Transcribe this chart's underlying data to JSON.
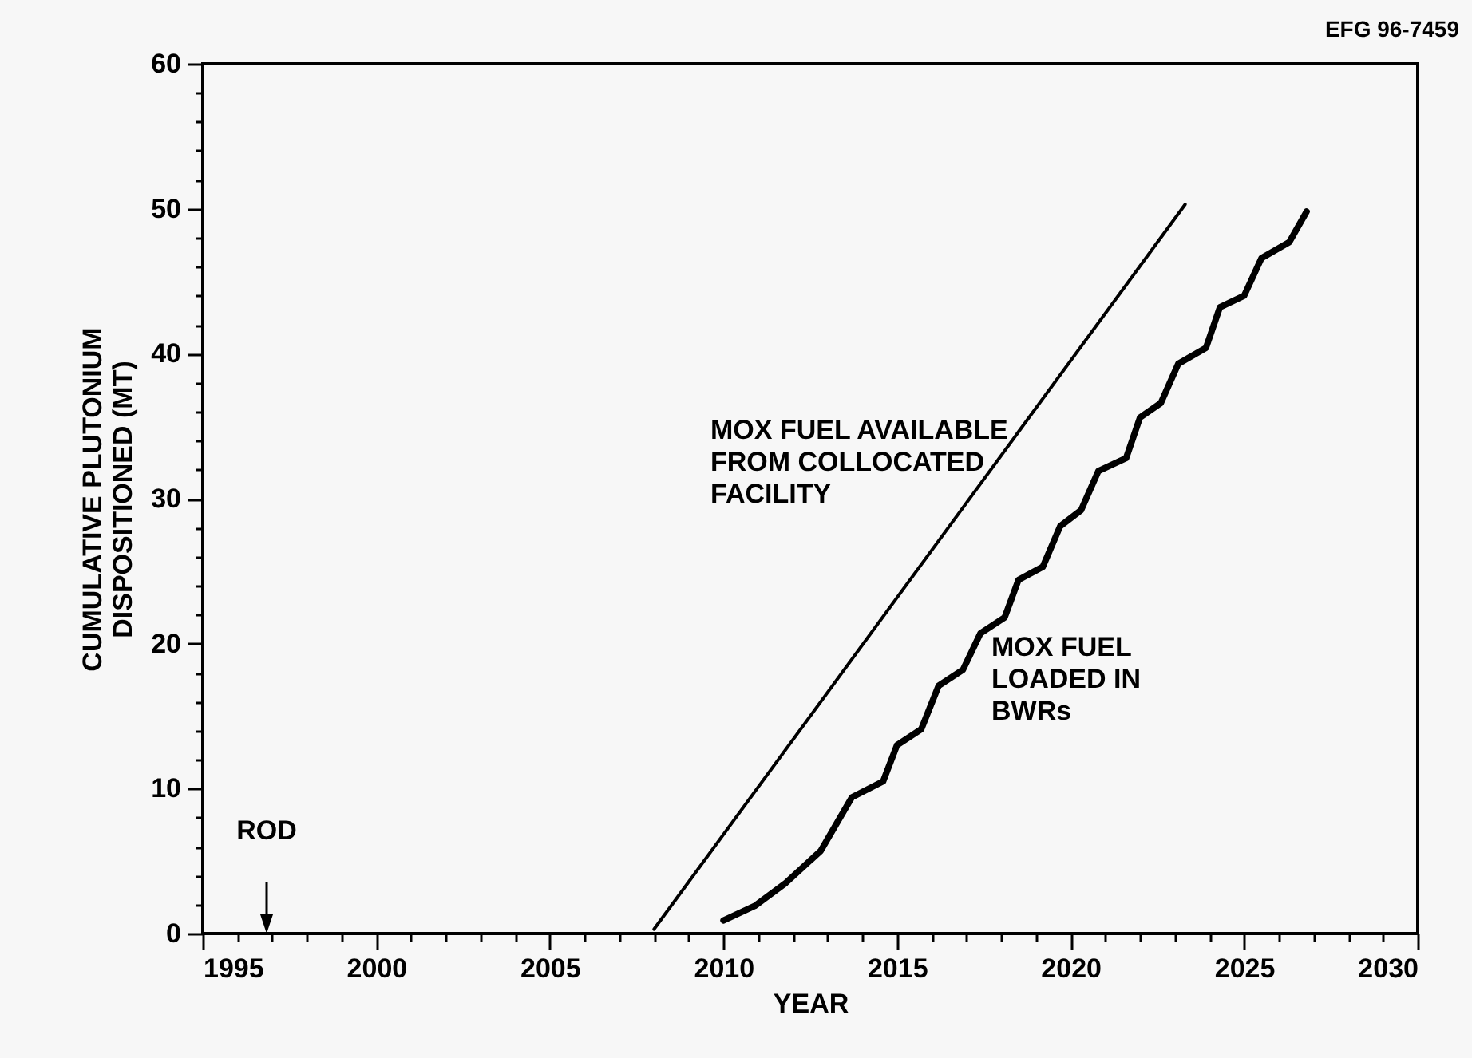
{
  "chart_data": {
    "type": "line",
    "xlabel": "YEAR",
    "ylabel": "CUMULATIVE PLUTONIUM DISPOSITIONED (MT)",
    "xlim": [
      1995,
      2030
    ],
    "ylim": [
      0,
      60
    ],
    "xticks": [
      1995,
      {
        "value": 1996,
        "label": null
      },
      {
        "value": 1997,
        "label": null
      },
      {
        "value": 1998,
        "label": null
      },
      {
        "value": 1999,
        "label": null
      },
      2000,
      {
        "value": 2001,
        "label": null
      },
      {
        "value": 2002,
        "label": null
      },
      {
        "value": 2003,
        "label": null
      },
      {
        "value": 2004,
        "label": null
      },
      2005,
      {
        "value": 2006,
        "label": null
      },
      {
        "value": 2007,
        "label": null
      },
      {
        "value": 2008,
        "label": null
      },
      {
        "value": 2009,
        "label": null
      },
      2010,
      {
        "value": 2011,
        "label": null
      },
      {
        "value": 2012,
        "label": null
      },
      {
        "value": 2013,
        "label": null
      },
      {
        "value": 2014,
        "label": null
      },
      2015,
      {
        "value": 2016,
        "label": null
      },
      {
        "value": 2017,
        "label": null
      },
      {
        "value": 2018,
        "label": null
      },
      {
        "value": 2019,
        "label": null
      },
      2020,
      {
        "value": 2021,
        "label": null
      },
      {
        "value": 2022,
        "label": null
      },
      {
        "value": 2023,
        "label": null
      },
      {
        "value": 2024,
        "label": null
      },
      2025,
      {
        "value": 2026,
        "label": null
      },
      {
        "value": 2027,
        "label": null
      },
      {
        "value": 2028,
        "label": null
      },
      {
        "value": 2029,
        "label": null
      },
      2030
    ],
    "yticks": [
      0,
      {
        "value": 2,
        "label": null
      },
      {
        "value": 4,
        "label": null
      },
      {
        "value": 6,
        "label": null
      },
      {
        "value": 8,
        "label": null
      },
      10,
      {
        "value": 12,
        "label": null
      },
      {
        "value": 14,
        "label": null
      },
      {
        "value": 16,
        "label": null
      },
      {
        "value": 18,
        "label": null
      },
      20,
      {
        "value": 22,
        "label": null
      },
      {
        "value": 24,
        "label": null
      },
      {
        "value": 26,
        "label": null
      },
      {
        "value": 28,
        "label": null
      },
      30,
      {
        "value": 32,
        "label": null
      },
      {
        "value": 34,
        "label": null
      },
      {
        "value": 36,
        "label": null
      },
      {
        "value": 38,
        "label": null
      },
      40,
      {
        "value": 42,
        "label": null
      },
      {
        "value": 44,
        "label": null
      },
      {
        "value": 46,
        "label": null
      },
      {
        "value": 48,
        "label": null
      },
      50,
      {
        "value": 52,
        "label": null
      },
      {
        "value": 54,
        "label": null
      },
      {
        "value": 56,
        "label": null
      },
      {
        "value": 58,
        "label": null
      },
      60
    ],
    "marker": "none",
    "line_style": "solid",
    "series": [
      {
        "name": "MOX FUEL AVAILABLE FROM COLLOCATED FACILITY",
        "color": "#000000",
        "x": [
          2008.0,
          2023.3
        ],
        "values": [
          0.3,
          50.3
        ]
      },
      {
        "name": "MOX FUEL LOADED IN BWRs",
        "color": "#000000",
        "x": [
          2010.0,
          2010.9,
          2011.8,
          2012.8,
          2013.7,
          2014.6,
          2015.0,
          2015.7,
          2016.2,
          2016.9,
          2017.4,
          2018.1,
          2018.5,
          2019.2,
          2019.7,
          2020.3,
          2020.8,
          2021.6,
          2022.0,
          2022.6,
          2023.1,
          2023.9,
          2024.3,
          2025.0,
          2025.5,
          2026.3,
          2026.8
        ],
        "values": [
          0.9,
          1.9,
          3.5,
          5.7,
          9.4,
          10.5,
          13.0,
          14.1,
          17.1,
          18.2,
          20.7,
          21.8,
          24.4,
          25.3,
          28.1,
          29.2,
          31.9,
          32.8,
          35.6,
          36.6,
          39.3,
          40.4,
          43.2,
          44.0,
          46.6,
          47.7,
          49.8
        ]
      }
    ],
    "annotations": [
      "ROD",
      "EFG 96-7459"
    ]
  }
}
